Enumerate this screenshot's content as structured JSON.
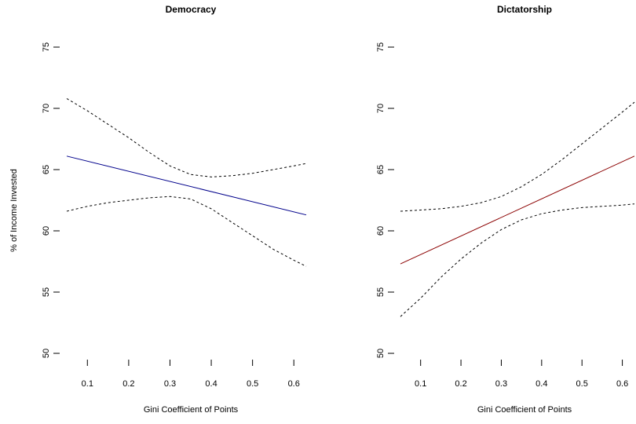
{
  "chart_data": [
    {
      "type": "line",
      "title": "Democracy",
      "xlabel": "Gini Coefficient of Points",
      "ylabel": "% of Income Invested",
      "xlim": [
        0.05,
        0.63
      ],
      "ylim": [
        50,
        75
      ],
      "xticks": [
        0.1,
        0.2,
        0.3,
        0.4,
        0.5,
        0.6
      ],
      "yticks": [
        50,
        55,
        60,
        65,
        70,
        75
      ],
      "grid": false,
      "series": [
        {
          "role": "estimate",
          "style": "solid",
          "color": "#00008B",
          "x": [
            0.05,
            0.63
          ],
          "y": [
            66.1,
            61.3
          ]
        },
        {
          "role": "upper",
          "style": "dashed",
          "color": "#000000",
          "x": [
            0.05,
            0.1,
            0.15,
            0.2,
            0.25,
            0.3,
            0.35,
            0.4,
            0.45,
            0.5,
            0.55,
            0.6,
            0.63
          ],
          "y": [
            70.8,
            69.8,
            68.7,
            67.6,
            66.4,
            65.3,
            64.6,
            64.4,
            64.5,
            64.7,
            65.0,
            65.3,
            65.5
          ]
        },
        {
          "role": "lower",
          "style": "dashed",
          "color": "#000000",
          "x": [
            0.05,
            0.1,
            0.15,
            0.2,
            0.25,
            0.3,
            0.35,
            0.4,
            0.45,
            0.5,
            0.55,
            0.6,
            0.63
          ],
          "y": [
            61.6,
            62.0,
            62.3,
            62.5,
            62.7,
            62.8,
            62.6,
            61.8,
            60.7,
            59.6,
            58.5,
            57.6,
            57.1
          ]
        }
      ]
    },
    {
      "type": "line",
      "title": "Dictatorship",
      "xlabel": "Gini Coefficient of Points",
      "ylabel": "",
      "xlim": [
        0.05,
        0.63
      ],
      "ylim": [
        50,
        75
      ],
      "xticks": [
        0.1,
        0.2,
        0.3,
        0.4,
        0.5,
        0.6
      ],
      "yticks": [
        50,
        55,
        60,
        65,
        70,
        75
      ],
      "grid": false,
      "series": [
        {
          "role": "estimate",
          "style": "solid",
          "color": "#8B0000",
          "x": [
            0.05,
            0.63
          ],
          "y": [
            57.3,
            66.1
          ]
        },
        {
          "role": "upper",
          "style": "dashed",
          "color": "#000000",
          "x": [
            0.05,
            0.1,
            0.15,
            0.2,
            0.25,
            0.3,
            0.35,
            0.4,
            0.45,
            0.5,
            0.55,
            0.6,
            0.63
          ],
          "y": [
            61.6,
            61.7,
            61.8,
            62.0,
            62.3,
            62.8,
            63.6,
            64.6,
            65.8,
            67.1,
            68.4,
            69.7,
            70.5
          ]
        },
        {
          "role": "lower",
          "style": "dashed",
          "color": "#000000",
          "x": [
            0.05,
            0.1,
            0.15,
            0.2,
            0.25,
            0.3,
            0.35,
            0.4,
            0.45,
            0.5,
            0.55,
            0.6,
            0.63
          ],
          "y": [
            53.0,
            54.5,
            56.2,
            57.7,
            59.0,
            60.1,
            60.9,
            61.4,
            61.7,
            61.9,
            62.0,
            62.1,
            62.2
          ]
        }
      ]
    }
  ]
}
